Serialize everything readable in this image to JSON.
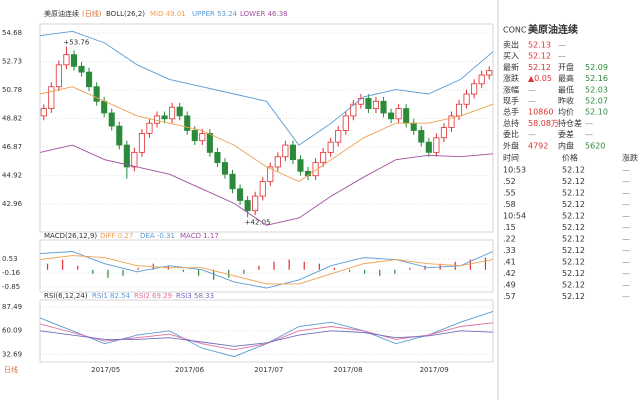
{
  "chart_data": {
    "type": "candlestick",
    "title": "美原油连续",
    "period": "(日线)",
    "indicator": "BOLL(26,2)",
    "legend": [
      {
        "text": "MID 49.01",
        "color": "#f0a050"
      },
      {
        "text": "UPPER 53.24",
        "color": "#5b9bd5"
      },
      {
        "text": "LOWER 46.38",
        "color": "#a050a0"
      }
    ],
    "ylim": [
      41.04,
      55.3
    ],
    "yticks": [
      {
        "value": 54.68,
        "label": "54.68"
      },
      {
        "value": 52.73,
        "label": "52.73"
      },
      {
        "value": 50.78,
        "label": "50.78"
      },
      {
        "value": 48.82,
        "label": "48.82"
      },
      {
        "value": 46.87,
        "label": "46.87"
      },
      {
        "value": 44.92,
        "label": "44.92"
      },
      {
        "value": 42.96,
        "label": "42.96"
      }
    ],
    "grid": true,
    "up_color": "#e03030",
    "down_color": "#2a8a3a",
    "open": [
      49.0,
      49.5,
      51.0,
      52.5,
      53.2,
      52.4,
      52.0,
      51.0,
      50.0,
      49.2,
      48.3,
      47.0,
      45.5,
      46.5,
      47.8,
      48.5,
      49.0,
      48.8,
      49.6,
      49.0,
      48.0,
      47.3,
      47.8,
      46.5,
      45.8,
      45.0,
      44.0,
      43.2,
      42.5,
      43.5,
      44.5,
      45.5,
      46.2,
      47.0,
      46.0,
      45.2,
      44.9,
      45.8,
      46.5,
      47.2,
      48.0,
      49.0,
      49.8,
      50.2,
      49.5,
      50.0,
      49.2,
      48.8,
      49.5,
      48.5,
      48.0,
      47.2,
      46.5,
      47.5,
      48.2,
      49.0,
      49.8,
      50.5,
      51.2,
      51.8
    ],
    "high": [
      49.8,
      51.3,
      52.8,
      53.76,
      53.5,
      52.7,
      52.3,
      51.3,
      50.3,
      49.5,
      48.6,
      47.3,
      46.8,
      48.1,
      48.8,
      49.3,
      49.3,
      49.9,
      49.9,
      49.3,
      48.3,
      48.1,
      48.1,
      46.8,
      46.1,
      45.3,
      44.3,
      43.5,
      43.8,
      44.8,
      45.8,
      46.5,
      47.3,
      47.3,
      46.3,
      45.5,
      46.1,
      46.8,
      47.5,
      48.3,
      49.3,
      50.1,
      50.5,
      50.5,
      50.3,
      50.3,
      49.5,
      49.8,
      49.8,
      48.8,
      48.3,
      47.5,
      47.8,
      48.5,
      49.3,
      50.1,
      50.8,
      51.5,
      52.1,
      52.4
    ],
    "low": [
      48.7,
      49.2,
      50.7,
      52.2,
      52.1,
      51.7,
      50.7,
      49.7,
      48.9,
      48.0,
      46.7,
      44.7,
      45.2,
      46.2,
      47.5,
      48.2,
      48.5,
      48.5,
      48.7,
      47.7,
      47.0,
      47.0,
      46.2,
      45.5,
      44.7,
      43.7,
      42.9,
      42.05,
      42.2,
      43.2,
      44.2,
      45.2,
      45.9,
      45.7,
      44.9,
      44.6,
      44.6,
      45.5,
      46.2,
      46.9,
      47.7,
      48.7,
      49.5,
      49.2,
      49.2,
      48.9,
      48.5,
      48.5,
      48.2,
      47.7,
      46.9,
      46.2,
      46.2,
      47.2,
      47.9,
      48.7,
      49.5,
      50.2,
      50.9,
      51.5
    ],
    "close": [
      49.5,
      51.0,
      52.5,
      53.2,
      52.4,
      52.0,
      51.0,
      50.0,
      49.2,
      48.3,
      47.0,
      45.5,
      46.5,
      47.8,
      48.5,
      49.0,
      48.8,
      49.6,
      49.0,
      48.0,
      47.3,
      47.8,
      46.5,
      45.8,
      45.0,
      44.0,
      43.2,
      42.5,
      43.5,
      44.5,
      45.5,
      46.2,
      47.0,
      46.0,
      45.2,
      44.9,
      45.8,
      46.5,
      47.2,
      48.0,
      49.0,
      49.8,
      50.2,
      49.5,
      50.0,
      49.2,
      48.8,
      49.5,
      48.5,
      48.0,
      47.2,
      46.5,
      47.5,
      48.2,
      49.0,
      49.8,
      50.5,
      51.2,
      51.8,
      52.1
    ],
    "annotations": [
      {
        "value": 53.76,
        "label": "+53.76"
      },
      {
        "value": 42.05,
        "label": "+42.05"
      }
    ],
    "bands": [
      {
        "color": "#5b9bd5",
        "values": [
          54.5,
          54.8,
          54.0,
          52.5,
          51.5,
          51.0,
          50.5,
          50.0,
          47.0,
          48.5,
          50.3,
          50.8,
          50.5,
          51.5,
          53.4
        ]
      },
      {
        "color": "#f0a050",
        "values": [
          50.5,
          51.0,
          50.0,
          49.0,
          48.5,
          48.0,
          47.0,
          45.5,
          44.5,
          46.0,
          47.5,
          48.5,
          48.5,
          49.0,
          49.8
        ]
      },
      {
        "color": "#a050a0",
        "values": [
          46.5,
          47.0,
          46.0,
          45.5,
          45.0,
          44.0,
          43.0,
          41.5,
          42.0,
          43.5,
          44.8,
          46.0,
          46.3,
          46.2,
          46.4
        ]
      }
    ],
    "x_labels": [
      "2017/05",
      "2017/06",
      "2017/07",
      "2017/08",
      "2017/09"
    ],
    "period_label": "日线",
    "macd": {
      "title": "MACD(26,12,9)",
      "legend": [
        {
          "text": "DIFF 0.27",
          "color": "#f0a050"
        },
        {
          "text": "DEA -0.31",
          "color": "#5b9bd5"
        },
        {
          "text": "MACD 1.17",
          "color": "#a050a0"
        }
      ],
      "ylim": [
        -1.1,
        1.47
      ],
      "yticks": [
        0.53,
        -0.16,
        -0.85
      ],
      "histogram": [
        0.3,
        0.5,
        0.2,
        -0.2,
        -0.4,
        -0.3,
        0.1,
        0.3,
        0.2,
        -0.1,
        -0.3,
        -0.5,
        -0.4,
        -0.2,
        0.2,
        0.4,
        0.5,
        0.4,
        0.3,
        0.1,
        -0.1,
        -0.2,
        -0.3,
        -0.2,
        0.1,
        0.2,
        0.3,
        0.4,
        0.5,
        0.6
      ],
      "series": [
        {
          "color": "#5b9bd5",
          "values": [
            0.8,
            0.9,
            0.3,
            -0.1,
            0.2,
            0.0,
            -0.6,
            -0.9,
            -0.5,
            0.2,
            0.6,
            0.5,
            0.1,
            0.2,
            0.9
          ]
        },
        {
          "color": "#f0a050",
          "values": [
            0.5,
            0.7,
            0.6,
            0.2,
            0.1,
            0.1,
            -0.3,
            -0.7,
            -0.7,
            -0.2,
            0.3,
            0.5,
            0.3,
            0.2,
            0.5
          ]
        }
      ]
    },
    "rsi": {
      "title": "RSI(6,12,24)",
      "legend": [
        {
          "text": "RSI1 82.54",
          "color": "#5b9bd5"
        },
        {
          "text": "RSI2 69.29",
          "color": "#e070a0"
        },
        {
          "text": "RSI3 58.33",
          "color": "#7070c0"
        }
      ],
      "ylim": [
        23.7,
        95.8
      ],
      "yticks": [
        87.49,
        60.09,
        32.69
      ],
      "series": [
        {
          "color": "#5b9bd5",
          "values": [
            75,
            60,
            45,
            55,
            60,
            40,
            30,
            45,
            65,
            70,
            60,
            45,
            55,
            70,
            82.54
          ]
        },
        {
          "color": "#e070a0",
          "values": [
            68,
            58,
            48,
            52,
            56,
            45,
            38,
            45,
            60,
            65,
            60,
            50,
            55,
            65,
            69.29
          ]
        },
        {
          "color": "#7070c0",
          "values": [
            60,
            55,
            50,
            50,
            52,
            47,
            42,
            46,
            55,
            60,
            58,
            52,
            54,
            60,
            58.33
          ]
        }
      ]
    }
  },
  "quote": {
    "code": "CONC",
    "name": "美原油连续",
    "rows": [
      [
        "卖出",
        "52.13",
        "—",
        ""
      ],
      [
        "买入",
        "52.12",
        "—",
        ""
      ],
      [
        "最新",
        "52.12",
        "开盘",
        "52.09"
      ],
      [
        "涨跌",
        "▲0.05",
        "最高",
        "52.16"
      ],
      [
        "涨幅",
        "—",
        "最低",
        "52.03"
      ],
      [
        "现手",
        "—",
        "昨收",
        "52.07"
      ],
      [
        "总手",
        "10860",
        "均价",
        "52.10"
      ],
      [
        "总持",
        "58.08万",
        "持仓差",
        "—"
      ],
      [
        "委比",
        "—",
        "委差",
        "—"
      ],
      [
        "外盘",
        "4792",
        "内盘",
        "5620"
      ]
    ],
    "trades_header": [
      "时间",
      "价格",
      "涨跌"
    ],
    "trades": [
      [
        "10:53",
        "52.12",
        "—"
      ],
      [
        ".52",
        "52.12",
        "—"
      ],
      [
        ".55",
        "52.12",
        "—"
      ],
      [
        ".58",
        "52.12",
        "—"
      ],
      [
        "10:54",
        "52.12",
        "—"
      ],
      [
        ".15",
        "52.12",
        "—"
      ],
      [
        ".22",
        "52.12",
        "—"
      ],
      [
        ".33",
        "52.12",
        "—"
      ],
      [
        ".41",
        "52.12",
        "—"
      ],
      [
        ".42",
        "52.12",
        "—"
      ],
      [
        ".49",
        "52.12",
        "—"
      ],
      [
        ".57",
        "52.12",
        "—"
      ]
    ]
  }
}
